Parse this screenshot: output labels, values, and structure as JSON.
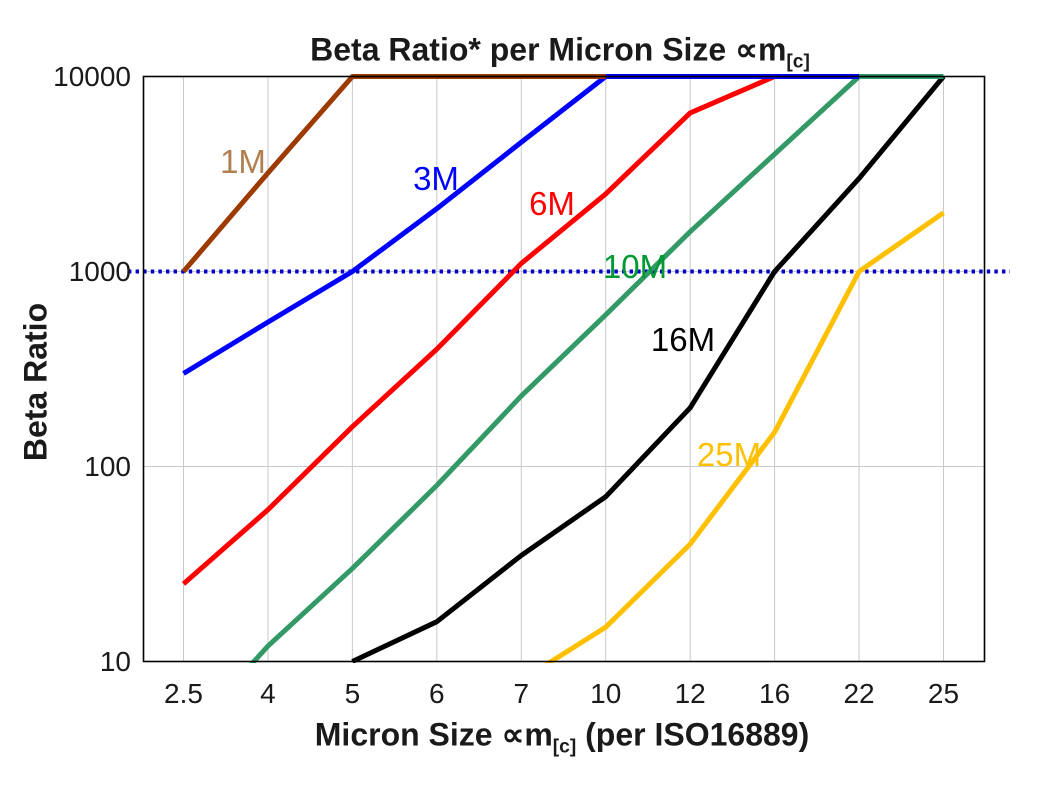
{
  "chart_data": {
    "type": "line",
    "title": "Beta Ratio* per Micron Size ∝m[c]",
    "title_parts": {
      "main": "Beta Ratio* per Micron Size ∝m",
      "sub": "[c]"
    },
    "xlabel": "Micron Size ∝m[c] (per ISO16889)",
    "xlabel_parts": {
      "pre": "Micron Size ∝m",
      "sub": "[c]",
      "post": " (per ISO16889)"
    },
    "ylabel": "Beta Ratio",
    "x_categories": [
      2.5,
      4,
      5,
      6,
      7,
      10,
      12,
      16,
      22,
      25
    ],
    "y_scale": "log",
    "ylim": [
      10,
      10000
    ],
    "y_ticks": [
      10,
      100,
      1000,
      10000
    ],
    "grid": {
      "vertical": true,
      "horizontal_at": [
        100,
        1000
      ],
      "color": "#c9c9c9"
    },
    "reference_line": {
      "y": 1000,
      "style": "dotted",
      "color": "#0000cc"
    },
    "series": [
      {
        "name": "1M",
        "color": "#9c3a00",
        "label_color": "#b08050",
        "label_xy": [
          243,
          162
        ],
        "x": [
          2.5,
          4,
          5,
          6,
          7,
          10
        ],
        "y": [
          1000,
          3200,
          10000,
          10000,
          10000,
          10000
        ]
      },
      {
        "name": "3M",
        "color": "#0000ff",
        "label_color": "#0000ff",
        "label_xy": [
          436,
          179
        ],
        "x": [
          2.5,
          4,
          5,
          6,
          7,
          10,
          12,
          16,
          22
        ],
        "y": [
          300,
          550,
          1000,
          2100,
          4600,
          10000,
          10000,
          10000,
          10000
        ]
      },
      {
        "name": "6M",
        "color": "#ff0000",
        "label_color": "#ff0000",
        "label_xy": [
          552,
          204
        ],
        "x": [
          2.5,
          4,
          5,
          6,
          7,
          10,
          12,
          16
        ],
        "y": [
          25,
          60,
          160,
          400,
          1100,
          2500,
          6500,
          10000
        ]
      },
      {
        "name": "10M",
        "color": "#339966",
        "label_color": "#009933",
        "label_xy": [
          635,
          267
        ],
        "x": [
          2.5,
          4,
          5,
          6,
          7,
          10,
          12,
          16,
          22,
          25
        ],
        "y": [
          4,
          12,
          30,
          80,
          230,
          600,
          1600,
          4000,
          10000,
          10000
        ]
      },
      {
        "name": "16M",
        "color": "#000000",
        "label_color": "#000000",
        "label_xy": [
          683,
          340
        ],
        "x": [
          5,
          6,
          7,
          10,
          12,
          16,
          22,
          25
        ],
        "y": [
          10,
          16,
          35,
          70,
          200,
          1000,
          3000,
          10000
        ]
      },
      {
        "name": "25M",
        "color": "#ffc000",
        "label_color": "#ffc000",
        "label_xy": [
          729,
          455
        ],
        "x": [
          7,
          10,
          12,
          16,
          22,
          25
        ],
        "y": [
          8,
          15,
          40,
          150,
          1000,
          2000
        ]
      }
    ]
  }
}
